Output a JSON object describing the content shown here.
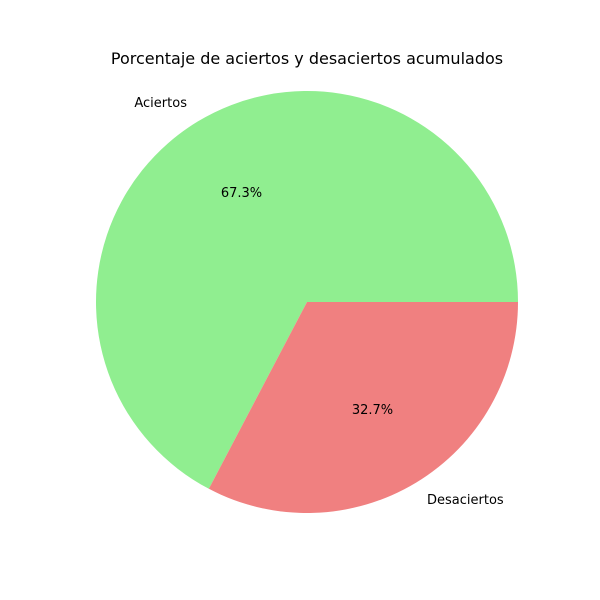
{
  "chart_data": {
    "type": "pie",
    "title": "Porcentaje de aciertos y desaciertos acumulados",
    "slices": [
      {
        "label": "Aciertos",
        "value": 67.3,
        "pct_label": "67.3%",
        "color": "#90ee90"
      },
      {
        "label": "Desaciertos",
        "value": 32.7,
        "pct_label": "32.7%",
        "color": "#f08080"
      }
    ],
    "start_angle_deg": 0,
    "direction": "counterclockwise"
  }
}
